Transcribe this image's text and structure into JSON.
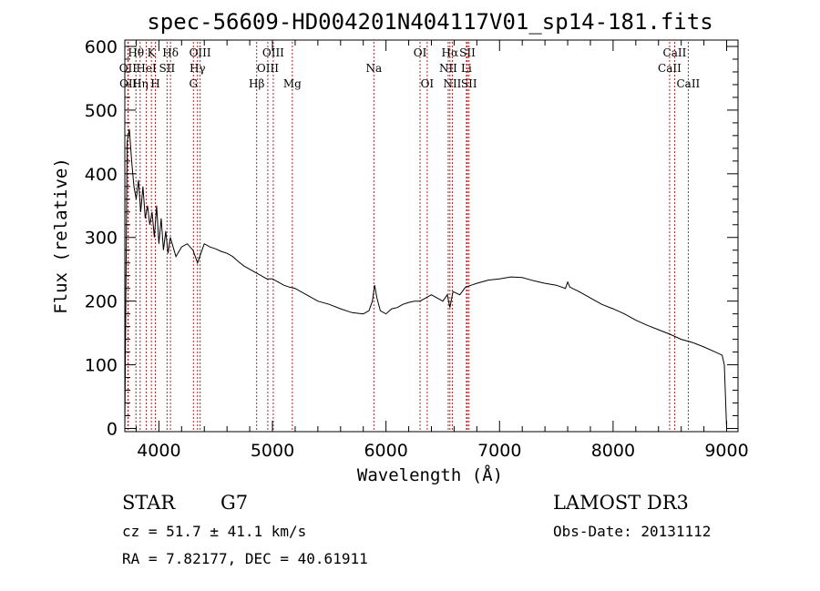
{
  "chart_data": {
    "type": "line",
    "title": "spec-56609-HD004201N404117V01_sp14-181.fits",
    "xlabel": "Wavelength (Å)",
    "ylabel": "Flux (relative)",
    "xlim": [
      3700,
      9100
    ],
    "ylim": [
      -5,
      610
    ],
    "x_ticks": [
      4000,
      5000,
      6000,
      7000,
      8000,
      9000
    ],
    "y_ticks": [
      0,
      100,
      200,
      300,
      400,
      500,
      600
    ],
    "x_minor_step": 200,
    "y_minor_step": 20,
    "series": [
      {
        "name": "flux",
        "x": [
          3700,
          3720,
          3740,
          3760,
          3780,
          3800,
          3820,
          3840,
          3860,
          3880,
          3900,
          3920,
          3940,
          3960,
          3980,
          4000,
          4020,
          4040,
          4060,
          4080,
          4100,
          4150,
          4200,
          4250,
          4300,
          4340,
          4400,
          4450,
          4500,
          4550,
          4600,
          4650,
          4700,
          4750,
          4800,
          4850,
          4900,
          4950,
          5000,
          5050,
          5100,
          5150,
          5200,
          5300,
          5400,
          5500,
          5600,
          5700,
          5800,
          5850,
          5880,
          5900,
          5920,
          5950,
          6000,
          6050,
          6100,
          6150,
          6200,
          6250,
          6300,
          6350,
          6400,
          6450,
          6500,
          6540,
          6563,
          6590,
          6650,
          6700,
          6750,
          6800,
          6900,
          7000,
          7100,
          7200,
          7300,
          7400,
          7500,
          7580,
          7600,
          7620,
          7700,
          7800,
          7900,
          8000,
          8100,
          8200,
          8300,
          8400,
          8500,
          8600,
          8700,
          8800,
          8900,
          8960,
          8980,
          9000
        ],
        "values": [
          0,
          450,
          470,
          420,
          380,
          360,
          390,
          340,
          380,
          330,
          350,
          320,
          340,
          300,
          350,
          290,
          330,
          280,
          310,
          275,
          300,
          270,
          285,
          290,
          280,
          260,
          290,
          285,
          282,
          278,
          275,
          270,
          262,
          255,
          250,
          245,
          240,
          235,
          235,
          230,
          225,
          222,
          220,
          210,
          200,
          195,
          188,
          182,
          180,
          185,
          200,
          225,
          205,
          185,
          180,
          188,
          190,
          195,
          198,
          200,
          200,
          205,
          210,
          205,
          200,
          210,
          190,
          215,
          210,
          222,
          225,
          228,
          233,
          235,
          238,
          237,
          232,
          228,
          225,
          220,
          230,
          222,
          215,
          205,
          195,
          188,
          180,
          170,
          162,
          155,
          148,
          140,
          135,
          128,
          120,
          115,
          100,
          0
        ]
      }
    ],
    "spectral_lines": [
      {
        "label": "Hθ",
        "x": 3798,
        "row": 0
      },
      {
        "label": "K",
        "x": 3934,
        "row": 0
      },
      {
        "label": "Hδ",
        "x": 4102,
        "row": 0
      },
      {
        "label": "OIII",
        "x": 4363,
        "row": 0
      },
      {
        "label": "OIII",
        "x": 5007,
        "row": 0
      },
      {
        "label": "OI",
        "x": 6300,
        "row": 0
      },
      {
        "label": "Hα",
        "x": 6563,
        "row": 0
      },
      {
        "label": "SII",
        "x": 6717,
        "row": 0
      },
      {
        "label": "CaII",
        "x": 8542,
        "row": 0
      },
      {
        "label": "OII",
        "x": 3727,
        "row": 1
      },
      {
        "label": "HeI",
        "x": 3889,
        "row": 1
      },
      {
        "label": "SII",
        "x": 4072,
        "row": 1
      },
      {
        "label": "Hγ",
        "x": 4340,
        "row": 1
      },
      {
        "label": "OIII",
        "x": 4959,
        "row": 1
      },
      {
        "label": "Na",
        "x": 5893,
        "row": 1
      },
      {
        "label": "NII",
        "x": 6548,
        "row": 1
      },
      {
        "label": "Li",
        "x": 6708,
        "row": 1
      },
      {
        "label": "CaII",
        "x": 8498,
        "row": 1
      },
      {
        "label": "OII",
        "x": 3730,
        "row": 2
      },
      {
        "label": "Hη",
        "x": 3835,
        "row": 2
      },
      {
        "label": "H",
        "x": 3969,
        "row": 2
      },
      {
        "label": "G",
        "x": 4304,
        "row": 2
      },
      {
        "label": "Hβ",
        "x": 4861,
        "row": 2
      },
      {
        "label": "Mg",
        "x": 5175,
        "row": 2
      },
      {
        "label": "OI",
        "x": 6363,
        "row": 2
      },
      {
        "label": "NII",
        "x": 6584,
        "row": 2
      },
      {
        "label": "SII",
        "x": 6731,
        "row": 2
      },
      {
        "label": "CaII",
        "x": 8662,
        "row": 2
      }
    ],
    "line_color": "#000000",
    "marker_color": "#b22222"
  },
  "info": {
    "class_label": "STAR",
    "subclass": "G7",
    "survey": "LAMOST DR3",
    "cz": "cz = 51.7 ± 41.1 km/s",
    "obs_date": "Obs-Date: 20131112",
    "radec": "RA =   7.82177, DEC =  40.61911"
  }
}
